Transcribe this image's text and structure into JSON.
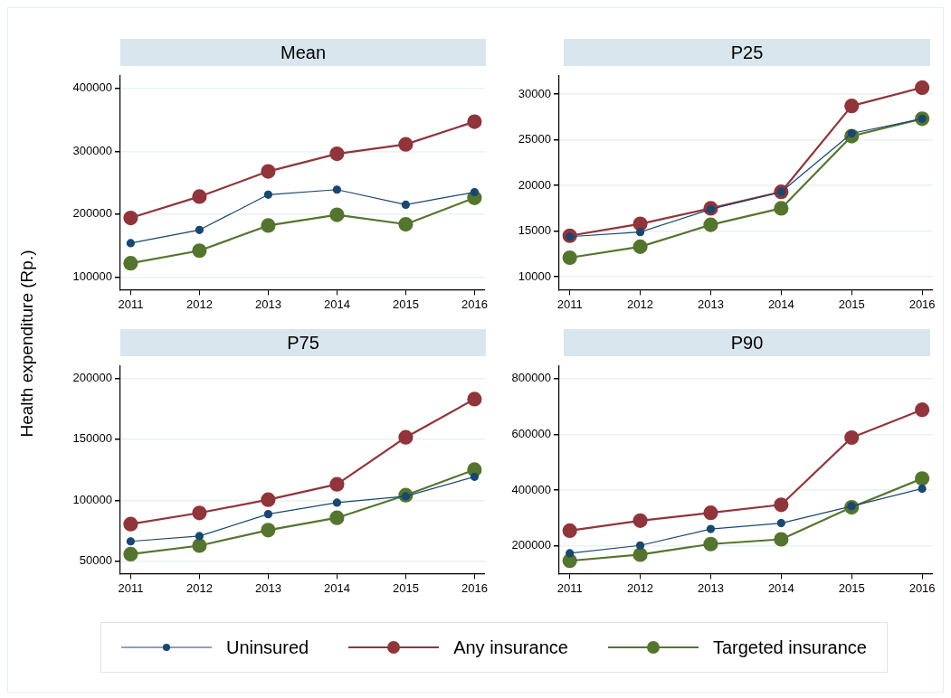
{
  "chart_data": [
    {
      "type": "line",
      "title": "Mean",
      "ylabel": "Health expenditure (Rp.)",
      "x": [
        2011,
        2012,
        2013,
        2014,
        2015,
        2016
      ],
      "xlim": [
        2010.85,
        2016.15
      ],
      "xticks": [
        2011,
        2012,
        2013,
        2014,
        2015,
        2016
      ],
      "ylim": [
        80000,
        420000
      ],
      "yticks": [
        100000,
        200000,
        300000,
        400000
      ],
      "grid": "y",
      "legend": "bottom",
      "marker": "circle",
      "line_style": "solid",
      "series": [
        {
          "name": "Uninsured",
          "color": "#1a476f",
          "values": [
            154000,
            175000,
            231000,
            239000,
            215000,
            235000
          ]
        },
        {
          "name": "Any insurance",
          "color": "#90353b",
          "values": [
            194000,
            228000,
            268000,
            296000,
            311000,
            347000
          ]
        },
        {
          "name": "Targeted insurance",
          "color": "#55752f",
          "values": [
            122000,
            142000,
            182000,
            199000,
            184000,
            226000
          ]
        }
      ]
    },
    {
      "type": "line",
      "title": "P25",
      "x": [
        2011,
        2012,
        2013,
        2014,
        2015,
        2016
      ],
      "xlim": [
        2010.85,
        2016.15
      ],
      "xticks": [
        2011,
        2012,
        2013,
        2014,
        2015,
        2016
      ],
      "ylim": [
        8600,
        32000
      ],
      "yticks": [
        10000,
        15000,
        20000,
        25000,
        30000
      ],
      "grid": "y",
      "marker": "circle",
      "line_style": "solid",
      "series": [
        {
          "color": "#1a476f",
          "values": [
            14400,
            14900,
            17400,
            19300,
            25700,
            27300
          ]
        },
        {
          "color": "#90353b",
          "values": [
            14500,
            15800,
            17500,
            19300,
            28700,
            30700
          ]
        },
        {
          "color": "#55752f",
          "values": [
            12100,
            13300,
            15700,
            17500,
            25400,
            27300
          ]
        }
      ]
    },
    {
      "type": "line",
      "title": "P75",
      "x": [
        2011,
        2012,
        2013,
        2014,
        2015,
        2016
      ],
      "xlim": [
        2010.85,
        2016.15
      ],
      "xticks": [
        2011,
        2012,
        2013,
        2014,
        2015,
        2016
      ],
      "ylim": [
        40000,
        210000
      ],
      "yticks": [
        50000,
        100000,
        150000,
        200000
      ],
      "grid": "y",
      "marker": "circle",
      "line_style": "solid",
      "series": [
        {
          "color": "#1a476f",
          "values": [
            66400,
            70700,
            88700,
            98100,
            103300,
            119300
          ]
        },
        {
          "color": "#90353b",
          "values": [
            80500,
            89700,
            100500,
            113100,
            151600,
            182900
          ]
        },
        {
          "color": "#55752f",
          "values": [
            55900,
            62900,
            75600,
            85700,
            104200,
            125100
          ]
        }
      ]
    },
    {
      "type": "line",
      "title": "P90",
      "x": [
        2011,
        2012,
        2013,
        2014,
        2015,
        2016
      ],
      "xlim": [
        2010.85,
        2016.15
      ],
      "xticks": [
        2011,
        2012,
        2013,
        2014,
        2015,
        2016
      ],
      "ylim": [
        100000,
        845000
      ],
      "yticks": [
        200000,
        400000,
        600000,
        800000
      ],
      "grid": "y",
      "marker": "circle",
      "line_style": "solid",
      "series": [
        {
          "color": "#1a476f",
          "values": [
            173000,
            201000,
            260000,
            281000,
            342000,
            405000
          ]
        },
        {
          "color": "#90353b",
          "values": [
            254000,
            290000,
            318000,
            347000,
            588000,
            688000
          ]
        },
        {
          "color": "#55752f",
          "values": [
            146000,
            168000,
            206000,
            223000,
            338000,
            441000
          ]
        }
      ]
    }
  ]
}
